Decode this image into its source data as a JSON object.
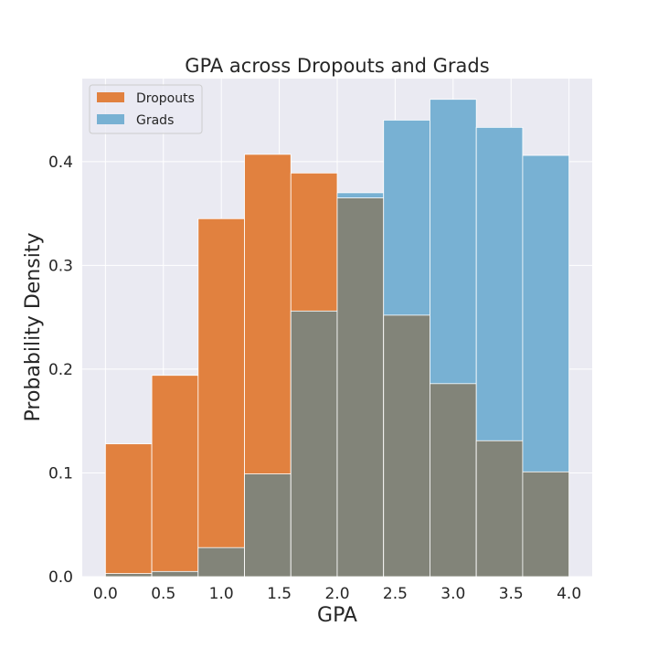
{
  "chart_data": {
    "type": "bar",
    "subtype": "overlapping-histogram",
    "title": "GPA across Dropouts and Grads",
    "xlabel": "GPA",
    "ylabel": "Probability Density",
    "xlim": [
      -0.2,
      4.2
    ],
    "ylim": [
      0,
      0.48
    ],
    "xticks": [
      "0.0",
      "0.5",
      "1.0",
      "1.5",
      "2.0",
      "2.5",
      "3.0",
      "3.5",
      "4.0"
    ],
    "yticks": [
      "0.0",
      "0.1",
      "0.2",
      "0.3",
      "0.4"
    ],
    "bin_edges": [
      0.0,
      0.4,
      0.8,
      1.2,
      1.6,
      2.0,
      2.4,
      2.8,
      3.2,
      3.6,
      4.0
    ],
    "grid": true,
    "legend_position": "top-left",
    "series": [
      {
        "name": "Dropouts",
        "color": "#e1813f",
        "values": [
          0.128,
          0.194,
          0.345,
          0.407,
          0.389,
          0.365,
          0.252,
          0.186,
          0.131,
          0.101
        ]
      },
      {
        "name": "Grads",
        "color": "#78b1d3",
        "values": [
          0.003,
          0.005,
          0.028,
          0.099,
          0.256,
          0.37,
          0.44,
          0.46,
          0.433,
          0.406
        ]
      }
    ],
    "overlap_color": "#828479"
  }
}
